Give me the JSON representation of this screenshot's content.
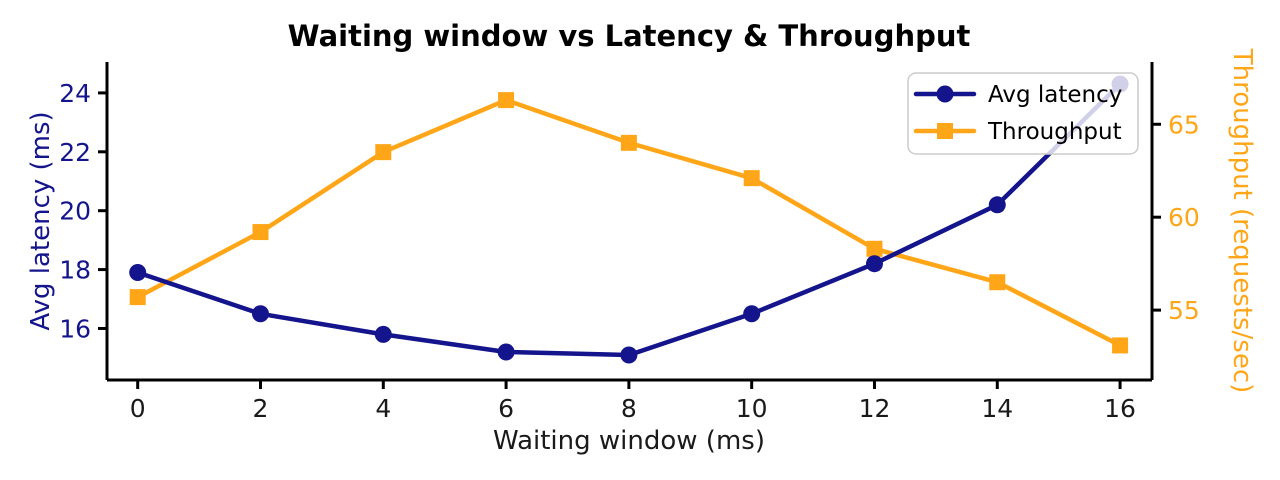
{
  "chart_data": {
    "type": "line",
    "title": "Waiting window vs Latency & Throughput",
    "xlabel": "Waiting window (ms)",
    "ylabel_left": "Avg latency (ms)",
    "ylabel_right": "Throughput (requests/sec)",
    "x": [
      0,
      2,
      4,
      6,
      8,
      10,
      12,
      14,
      16
    ],
    "series": [
      {
        "name": "Avg latency",
        "axis": "left",
        "marker": "circle",
        "color": "#14148c",
        "values": [
          17.9,
          16.5,
          15.8,
          15.2,
          15.1,
          16.5,
          18.2,
          20.2,
          24.3
        ]
      },
      {
        "name": "Throughput",
        "axis": "right",
        "marker": "square",
        "color": "#ffa618",
        "values": [
          55.7,
          59.2,
          63.5,
          66.3,
          64.0,
          62.1,
          58.3,
          56.5,
          53.1
        ]
      }
    ],
    "x_ticks": [
      0,
      2,
      4,
      6,
      8,
      10,
      12,
      14,
      16
    ],
    "left_ticks": [
      16,
      18,
      20,
      22,
      24
    ],
    "right_ticks": [
      55,
      60,
      65
    ],
    "xlim": [
      -0.5,
      16.52
    ],
    "ylim_left": [
      14.25,
      25.05
    ],
    "ylim_right": [
      51.24,
      68.35
    ],
    "grid": false,
    "legend_position": "upper right",
    "colors": {
      "left_axis_text": "#14148c",
      "right_axis_text": "#ffa618",
      "spine": "#000000",
      "title_text": "#000000",
      "xlabel_text": "#1a1a1a",
      "legend_border": "#cccccc",
      "legend_background": "rgba(255,255,255,0.8)"
    }
  },
  "legend": {
    "items": [
      {
        "label": "Avg latency"
      },
      {
        "label": "Throughput"
      }
    ]
  }
}
